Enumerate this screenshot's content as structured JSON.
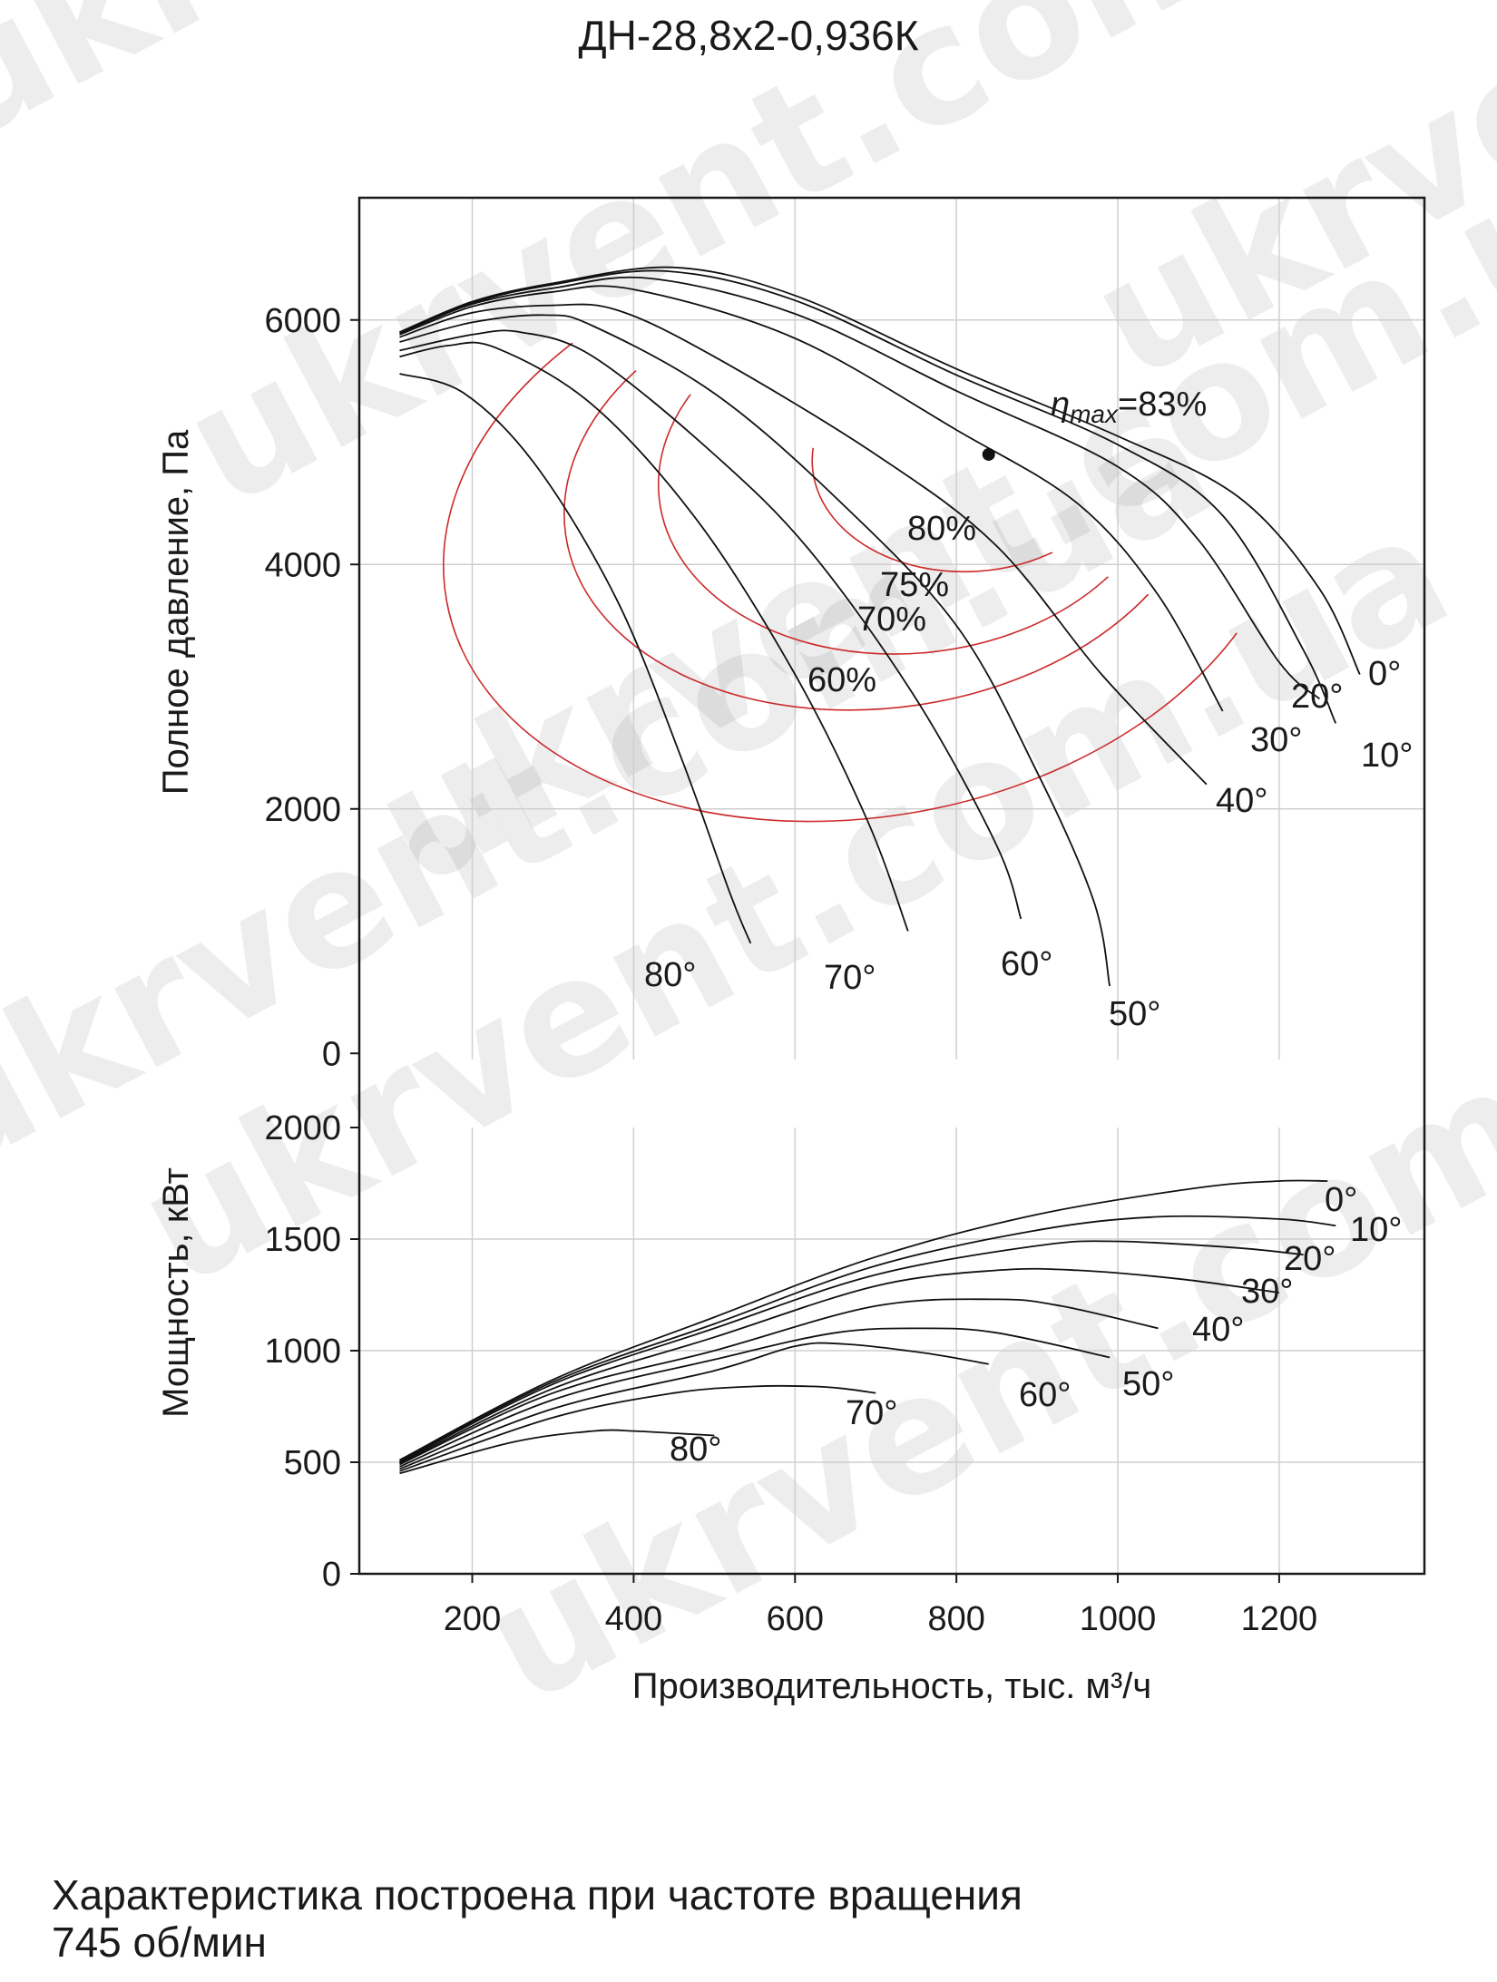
{
  "title": "ДН-28,8х2-0,936К",
  "footnote": {
    "line1": "Характеристика построена при частоте вращения",
    "line2": "745 об/мин"
  },
  "watermark": "ukrvent.com.ua",
  "colors": {
    "curve": "#111111",
    "efficiency": "#cc2a2a",
    "grid": "#cfcfcf"
  },
  "chart_data": [
    {
      "type": "line",
      "panel": "pressure",
      "xlabel": "Производительность, тыс. м³/ч",
      "ylabel": "Полное давление, Па",
      "xlim": [
        60,
        1380
      ],
      "ylim": [
        -50,
        7000
      ],
      "xticks": [
        "200",
        "400",
        "600",
        "800",
        "1000",
        "1200"
      ],
      "yticks": [
        "0",
        "2000",
        "4000",
        "6000"
      ],
      "ytick_values": [
        0,
        2000,
        4000,
        6000
      ],
      "grid": true,
      "series": [
        {
          "name": "0°",
          "points": [
            [
              110,
              5900
            ],
            [
              200,
              6150
            ],
            [
              300,
              6300
            ],
            [
              450,
              6430
            ],
            [
              600,
              6200
            ],
            [
              800,
              5600
            ],
            [
              1000,
              5050
            ],
            [
              1150,
              4550
            ],
            [
              1250,
              3800
            ],
            [
              1300,
              3100
            ]
          ]
        },
        {
          "name": "10°",
          "points": [
            [
              110,
              5900
            ],
            [
              200,
              6140
            ],
            [
              300,
              6290
            ],
            [
              440,
              6400
            ],
            [
              600,
              6160
            ],
            [
              800,
              5550
            ],
            [
              1000,
              4980
            ],
            [
              1130,
              4400
            ],
            [
              1230,
              3300
            ],
            [
              1270,
              2700
            ]
          ]
        },
        {
          "name": "20°",
          "points": [
            [
              110,
              5890
            ],
            [
              200,
              6130
            ],
            [
              300,
              6260
            ],
            [
              420,
              6340
            ],
            [
              600,
              6050
            ],
            [
              800,
              5420
            ],
            [
              1000,
              4800
            ],
            [
              1100,
              4200
            ],
            [
              1200,
              3200
            ],
            [
              1250,
              2900
            ]
          ]
        },
        {
          "name": "30°",
          "points": [
            [
              110,
              5880
            ],
            [
              200,
              6110
            ],
            [
              300,
              6230
            ],
            [
              400,
              6250
            ],
            [
              600,
              5850
            ],
            [
              800,
              5100
            ],
            [
              950,
              4500
            ],
            [
              1050,
              3750
            ],
            [
              1130,
              2800
            ]
          ]
        },
        {
          "name": "40°",
          "points": [
            [
              110,
              5860
            ],
            [
              200,
              6060
            ],
            [
              300,
              6120
            ],
            [
              380,
              6080
            ],
            [
              500,
              5700
            ],
            [
              700,
              4900
            ],
            [
              850,
              4150
            ],
            [
              980,
              3100
            ],
            [
              1110,
              2200
            ]
          ]
        },
        {
          "name": "50°",
          "points": [
            [
              110,
              5820
            ],
            [
              200,
              5980
            ],
            [
              290,
              6040
            ],
            [
              350,
              5950
            ],
            [
              500,
              5400
            ],
            [
              650,
              4550
            ],
            [
              800,
              3500
            ],
            [
              900,
              2300
            ],
            [
              970,
              1250
            ],
            [
              990,
              550
            ]
          ]
        },
        {
          "name": "60°",
          "points": [
            [
              110,
              5750
            ],
            [
              200,
              5880
            ],
            [
              260,
              5900
            ],
            [
              350,
              5700
            ],
            [
              500,
              4900
            ],
            [
              620,
              4100
            ],
            [
              750,
              2900
            ],
            [
              850,
              1700
            ],
            [
              880,
              1100
            ]
          ]
        },
        {
          "name": "70°",
          "points": [
            [
              110,
              5700
            ],
            [
              170,
              5790
            ],
            [
              230,
              5770
            ],
            [
              350,
              5300
            ],
            [
              480,
              4350
            ],
            [
              600,
              3100
            ],
            [
              690,
              1900
            ],
            [
              740,
              1000
            ]
          ]
        },
        {
          "name": "80°",
          "points": [
            [
              110,
              5560
            ],
            [
              190,
              5400
            ],
            [
              280,
              4800
            ],
            [
              380,
              3700
            ],
            [
              460,
              2400
            ],
            [
              520,
              1300
            ],
            [
              545,
              900
            ]
          ]
        }
      ],
      "series_labels": [
        "0°",
        "10°",
        "20°",
        "30°",
        "40°",
        "50°",
        "60°",
        "70°",
        "80°"
      ],
      "efficiency_contours": [
        "80%",
        "75%",
        "70%",
        "60%"
      ],
      "efficiency_max": {
        "label_main": "η",
        "label_sub": "max",
        "label_rest": "=83%",
        "x": 840,
        "y": 4900
      }
    },
    {
      "type": "line",
      "panel": "power",
      "ylabel": "Мощность, кВт",
      "xlim": [
        60,
        1380
      ],
      "ylim": [
        0,
        2000
      ],
      "xticks": [
        "200",
        "400",
        "600",
        "800",
        "1000",
        "1200"
      ],
      "xtick_values": [
        200,
        400,
        600,
        800,
        1000,
        1200
      ],
      "yticks": [
        "0",
        "500",
        "1000",
        "1500",
        "2000"
      ],
      "ytick_values": [
        0,
        500,
        1000,
        1500,
        2000
      ],
      "grid": true,
      "series": [
        {
          "name": "0°",
          "points": [
            [
              110,
              510
            ],
            [
              300,
              870
            ],
            [
              500,
              1150
            ],
            [
              700,
              1420
            ],
            [
              900,
              1610
            ],
            [
              1100,
              1730
            ],
            [
              1200,
              1760
            ],
            [
              1260,
              1760
            ]
          ]
        },
        {
          "name": "10°",
          "points": [
            [
              110,
              505
            ],
            [
              300,
              860
            ],
            [
              500,
              1120
            ],
            [
              700,
              1380
            ],
            [
              900,
              1540
            ],
            [
              1050,
              1600
            ],
            [
              1200,
              1590
            ],
            [
              1270,
              1560
            ]
          ]
        },
        {
          "name": "20°",
          "points": [
            [
              110,
              500
            ],
            [
              300,
              850
            ],
            [
              500,
              1100
            ],
            [
              700,
              1340
            ],
            [
              900,
              1470
            ],
            [
              1000,
              1490
            ],
            [
              1150,
              1460
            ],
            [
              1230,
              1430
            ]
          ]
        },
        {
          "name": "30°",
          "points": [
            [
              110,
              495
            ],
            [
              300,
              830
            ],
            [
              500,
              1060
            ],
            [
              700,
              1290
            ],
            [
              850,
              1360
            ],
            [
              950,
              1360
            ],
            [
              1080,
              1320
            ],
            [
              1200,
              1260
            ]
          ]
        },
        {
          "name": "40°",
          "points": [
            [
              110,
              490
            ],
            [
              300,
              810
            ],
            [
              500,
              1000
            ],
            [
              700,
              1200
            ],
            [
              850,
              1230
            ],
            [
              930,
              1200
            ],
            [
              1050,
              1100
            ]
          ]
        },
        {
          "name": "50°",
          "points": [
            [
              110,
              480
            ],
            [
              300,
              780
            ],
            [
              500,
              960
            ],
            [
              650,
              1080
            ],
            [
              760,
              1100
            ],
            [
              850,
              1080
            ],
            [
              990,
              970
            ]
          ]
        },
        {
          "name": "60°",
          "points": [
            [
              110,
              470
            ],
            [
              300,
              740
            ],
            [
              500,
              910
            ],
            [
              600,
              1020
            ],
            [
              660,
              1030
            ],
            [
              760,
              990
            ],
            [
              840,
              940
            ]
          ]
        },
        {
          "name": "70°",
          "points": [
            [
              110,
              460
            ],
            [
              300,
              700
            ],
            [
              450,
              810
            ],
            [
              550,
              840
            ],
            [
              620,
              840
            ],
            [
              660,
              830
            ],
            [
              700,
              810
            ]
          ]
        },
        {
          "name": "80°",
          "points": [
            [
              110,
              450
            ],
            [
              250,
              590
            ],
            [
              350,
              640
            ],
            [
              400,
              640
            ],
            [
              450,
              630
            ],
            [
              500,
              620
            ]
          ]
        }
      ],
      "series_labels": [
        "0°",
        "10°",
        "20°",
        "30°",
        "40°",
        "50°",
        "60°",
        "70°",
        "80°"
      ]
    }
  ]
}
